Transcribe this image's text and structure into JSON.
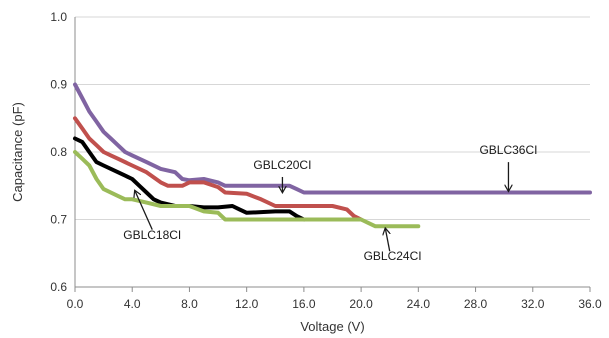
{
  "chart_data": {
    "type": "line",
    "title": "",
    "xlabel": "Voltage (V)",
    "ylabel": "Capacitance (pF)",
    "xlim": [
      0,
      36
    ],
    "ylim": [
      0.6,
      1.0
    ],
    "x_ticks": [
      0,
      4,
      8,
      12,
      16,
      20,
      24,
      28,
      32,
      36
    ],
    "x_tick_labels": [
      "0.0",
      "4.0",
      "8.0",
      "12.0",
      "16.0",
      "20.0",
      "24.0",
      "28.0",
      "32.0",
      "36.0"
    ],
    "y_ticks": [
      0.6,
      0.7,
      0.8,
      0.9,
      1.0
    ],
    "y_tick_labels": [
      "0.6",
      "0.7",
      "0.8",
      "0.9",
      "1.0"
    ],
    "grid": "horizontal",
    "legend": "none",
    "series": [
      {
        "name": "GBLC36CI",
        "color": "#8064a2",
        "points": [
          [
            0,
            0.9
          ],
          [
            0.5,
            0.88
          ],
          [
            1,
            0.86
          ],
          [
            1.5,
            0.845
          ],
          [
            2,
            0.83
          ],
          [
            2.5,
            0.82
          ],
          [
            3,
            0.81
          ],
          [
            3.5,
            0.8
          ],
          [
            4,
            0.795
          ],
          [
            5,
            0.785
          ],
          [
            6,
            0.775
          ],
          [
            7,
            0.77
          ],
          [
            7.5,
            0.76
          ],
          [
            8,
            0.758
          ],
          [
            9,
            0.76
          ],
          [
            10,
            0.755
          ],
          [
            10.5,
            0.75
          ],
          [
            12,
            0.75
          ],
          [
            14,
            0.75
          ],
          [
            15,
            0.75
          ],
          [
            15.5,
            0.745
          ],
          [
            16,
            0.74
          ],
          [
            18,
            0.74
          ],
          [
            20,
            0.74
          ],
          [
            24,
            0.74
          ],
          [
            28,
            0.74
          ],
          [
            32,
            0.74
          ],
          [
            36,
            0.74
          ]
        ]
      },
      {
        "name": "GBLC20CI",
        "color": "#c0504d",
        "points": [
          [
            0,
            0.85
          ],
          [
            0.5,
            0.835
          ],
          [
            1,
            0.82
          ],
          [
            1.5,
            0.81
          ],
          [
            2,
            0.8
          ],
          [
            2.5,
            0.795
          ],
          [
            3,
            0.79
          ],
          [
            4,
            0.78
          ],
          [
            5,
            0.77
          ],
          [
            6,
            0.755
          ],
          [
            6.5,
            0.75
          ],
          [
            7.5,
            0.75
          ],
          [
            8,
            0.755
          ],
          [
            9,
            0.755
          ],
          [
            10,
            0.748
          ],
          [
            10.5,
            0.74
          ],
          [
            12,
            0.738
          ],
          [
            13,
            0.73
          ],
          [
            14,
            0.72
          ],
          [
            16,
            0.72
          ],
          [
            17,
            0.72
          ],
          [
            18,
            0.72
          ],
          [
            19,
            0.715
          ],
          [
            19.5,
            0.705
          ],
          [
            20,
            0.7
          ]
        ]
      },
      {
        "name": "GBLC18CI",
        "color": "#000000",
        "points": [
          [
            0,
            0.82
          ],
          [
            0.5,
            0.815
          ],
          [
            1,
            0.8
          ],
          [
            1.5,
            0.785
          ],
          [
            2,
            0.78
          ],
          [
            3,
            0.77
          ],
          [
            3.5,
            0.765
          ],
          [
            4,
            0.76
          ],
          [
            4.5,
            0.75
          ],
          [
            5,
            0.74
          ],
          [
            5.5,
            0.73
          ],
          [
            6,
            0.725
          ],
          [
            7,
            0.72
          ],
          [
            8,
            0.72
          ],
          [
            9,
            0.718
          ],
          [
            10,
            0.718
          ],
          [
            11,
            0.72
          ],
          [
            11.5,
            0.715
          ],
          [
            12,
            0.71
          ],
          [
            14,
            0.712
          ],
          [
            15,
            0.712
          ],
          [
            15.5,
            0.705
          ],
          [
            16,
            0.7
          ]
        ]
      },
      {
        "name": "GBLC24CI",
        "color": "#9bbb59",
        "points": [
          [
            0,
            0.8
          ],
          [
            0.5,
            0.79
          ],
          [
            1,
            0.78
          ],
          [
            1.5,
            0.76
          ],
          [
            2,
            0.745
          ],
          [
            3,
            0.735
          ],
          [
            3.5,
            0.73
          ],
          [
            4,
            0.73
          ],
          [
            5,
            0.725
          ],
          [
            6,
            0.72
          ],
          [
            8,
            0.72
          ],
          [
            9,
            0.712
          ],
          [
            10,
            0.71
          ],
          [
            10.5,
            0.7
          ],
          [
            12,
            0.7
          ],
          [
            14,
            0.7
          ],
          [
            16,
            0.7
          ],
          [
            18,
            0.7
          ],
          [
            20,
            0.7
          ],
          [
            20.5,
            0.695
          ],
          [
            21,
            0.69
          ],
          [
            22,
            0.69
          ],
          [
            24,
            0.69
          ]
        ]
      }
    ],
    "annotations": [
      {
        "label": "GBLC36CI",
        "text_x": 30.3,
        "text_y": 0.797,
        "arrow_from": [
          30.3,
          0.785
        ],
        "arrow_to": [
          30.3,
          0.743
        ]
      },
      {
        "label": "GBLC20CI",
        "text_x": 14.5,
        "text_y": 0.775,
        "arrow_from": [
          14.5,
          0.763
        ],
        "arrow_to": [
          14.5,
          0.741
        ]
      },
      {
        "label": "GBLC18CI",
        "text_x": 5.4,
        "text_y": 0.671,
        "arrow_from": [
          5.4,
          0.685
        ],
        "arrow_to": [
          4.2,
          0.742
        ]
      },
      {
        "label": "GBLC24CI",
        "text_x": 22.2,
        "text_y": 0.64,
        "arrow_from": [
          22.0,
          0.653
        ],
        "arrow_to": [
          21.7,
          0.686
        ]
      }
    ]
  }
}
